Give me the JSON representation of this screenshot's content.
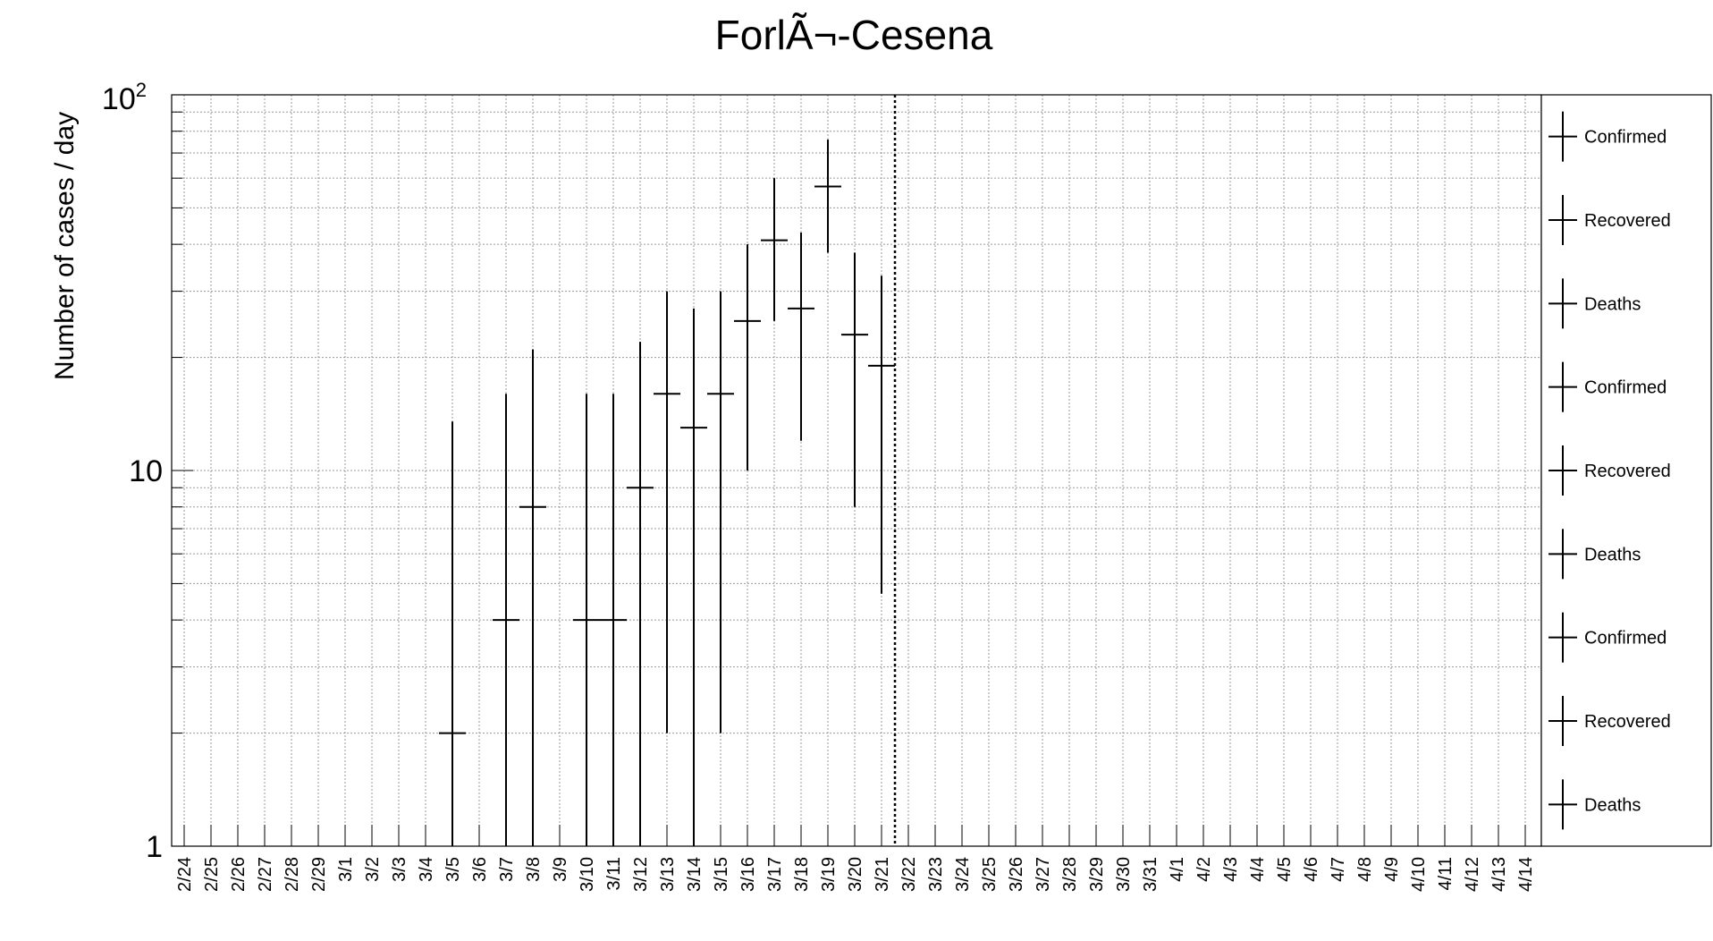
{
  "chart_data": {
    "type": "scatter",
    "title": "ForlÃ¬-Cesena",
    "ylabel": "Number of cases / day",
    "xlabel": "",
    "y_scale": "log",
    "ylim": [
      1,
      100
    ],
    "y_ticks": [
      {
        "value": 1,
        "label": "1"
      },
      {
        "value": 10,
        "label": "10"
      },
      {
        "value": 100,
        "label": "10",
        "sup": "2"
      }
    ],
    "grid": true,
    "legend_position": "right",
    "categories": [
      "2/24",
      "2/25",
      "2/26",
      "2/27",
      "2/28",
      "2/29",
      "3/1",
      "3/2",
      "3/3",
      "3/4",
      "3/5",
      "3/6",
      "3/7",
      "3/8",
      "3/9",
      "3/10",
      "3/11",
      "3/12",
      "3/13",
      "3/14",
      "3/15",
      "3/16",
      "3/17",
      "3/18",
      "3/19",
      "3/20",
      "3/21",
      "3/22",
      "3/23",
      "3/24",
      "3/25",
      "3/26",
      "3/27",
      "3/28",
      "3/29",
      "3/30",
      "3/31",
      "4/1",
      "4/2",
      "4/3",
      "4/4",
      "4/5",
      "4/6",
      "4/7",
      "4/8",
      "4/9",
      "4/10",
      "4/11",
      "4/12",
      "4/13",
      "4/14"
    ],
    "series": [
      {
        "name": "Confirmed",
        "color": "#000000",
        "points": [
          {
            "x": "3/5",
            "y": 2,
            "err_low": 1,
            "err_high": 13.5
          },
          {
            "x": "3/7",
            "y": 4,
            "err_low": 1,
            "err_high": 16
          },
          {
            "x": "3/8",
            "y": 8,
            "err_low": 1,
            "err_high": 21
          },
          {
            "x": "3/10",
            "y": 4,
            "err_low": 1,
            "err_high": 16
          },
          {
            "x": "3/11",
            "y": 4,
            "err_low": 1,
            "err_high": 16
          },
          {
            "x": "3/12",
            "y": 9,
            "err_low": 1,
            "err_high": 22
          },
          {
            "x": "3/13",
            "y": 16,
            "err_low": 2,
            "err_high": 30
          },
          {
            "x": "3/14",
            "y": 13,
            "err_low": 1,
            "err_high": 27
          },
          {
            "x": "3/15",
            "y": 16,
            "err_low": 2,
            "err_high": 30
          },
          {
            "x": "3/16",
            "y": 25,
            "err_low": 10,
            "err_high": 40
          },
          {
            "x": "3/17",
            "y": 41,
            "err_low": 25,
            "err_high": 60
          },
          {
            "x": "3/18",
            "y": 27,
            "err_low": 12,
            "err_high": 43
          },
          {
            "x": "3/19",
            "y": 57,
            "err_low": 38,
            "err_high": 76
          },
          {
            "x": "3/20",
            "y": 23,
            "err_low": 8,
            "err_high": 38
          },
          {
            "x": "3/21",
            "y": 19,
            "err_low": 4.7,
            "err_high": 33
          }
        ]
      }
    ],
    "reference_line": {
      "x": "3/22",
      "style": "dotted"
    },
    "legend": [
      {
        "label": "Confirmed"
      },
      {
        "label": "Recovered"
      },
      {
        "label": "Deaths"
      },
      {
        "label": "Confirmed"
      },
      {
        "label": "Recovered"
      },
      {
        "label": "Deaths"
      },
      {
        "label": "Confirmed"
      },
      {
        "label": "Recovered"
      },
      {
        "label": "Deaths"
      }
    ]
  }
}
